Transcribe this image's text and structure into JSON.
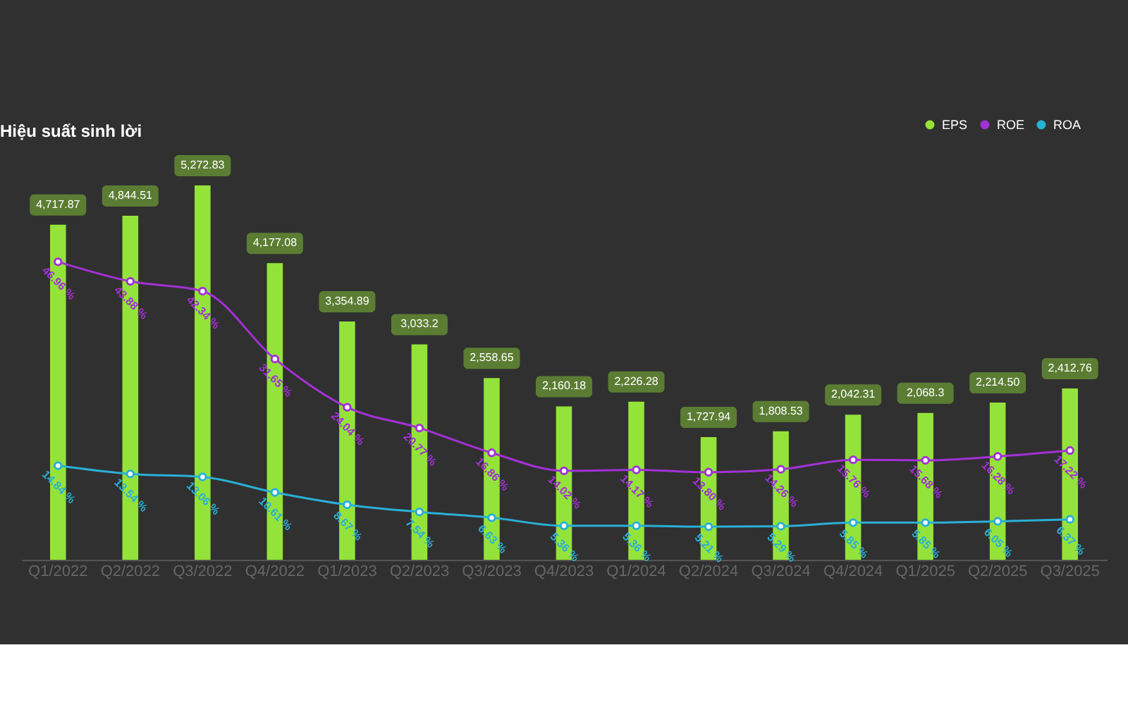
{
  "chart_data": {
    "type": "bar",
    "title": "Hiệu suất sinh lời",
    "categories": [
      "Q1/2022",
      "Q2/2022",
      "Q3/2022",
      "Q4/2022",
      "Q1/2023",
      "Q2/2023",
      "Q3/2023",
      "Q4/2023",
      "Q1/2024",
      "Q2/2024",
      "Q3/2024",
      "Q4/2024",
      "Q1/2025",
      "Q2/2025",
      "Q3/2025"
    ],
    "series": [
      {
        "name": "EPS",
        "color": "#94e33a",
        "values": [
          4717.87,
          4844.51,
          5272.83,
          4177.08,
          3354.89,
          3033.2,
          2558.65,
          2160.18,
          2226.28,
          1727.94,
          1808.53,
          2042.31,
          2068.3,
          2214.5,
          2412.76
        ],
        "value_labels": [
          "4,717.87",
          "4,844.51",
          "5,272.83",
          "4,177.08",
          "3,354.89",
          "3,033.2",
          "2,558.65",
          "2,160.18",
          "2,226.28",
          "1,727.94",
          "1,808.53",
          "2,042.31",
          "2,068.3",
          "2,214.50",
          "2,412.76"
        ]
      },
      {
        "name": "ROE",
        "type": "line",
        "axis": "y2",
        "color": "#a331d6",
        "values": [
          46.96,
          43.88,
          42.34,
          31.65,
          24.04,
          20.77,
          16.86,
          14.02,
          14.17,
          13.8,
          14.26,
          15.76,
          15.68,
          16.28,
          17.22
        ],
        "value_labels": [
          "46.96 %",
          "43.88 %",
          "42.34 %",
          "31.65 %",
          "24.04 %",
          "20.77 %",
          "16.86 %",
          "14.02 %",
          "14.17 %",
          "13.80 %",
          "14.26 %",
          "15.76 %",
          "15.68 %",
          "16.28 %",
          "17.22 %"
        ]
      },
      {
        "name": "ROA",
        "type": "line",
        "axis": "y2",
        "color": "#2ab0d6",
        "values": [
          14.84,
          13.54,
          13.06,
          10.61,
          8.67,
          7.54,
          6.63,
          5.36,
          5.36,
          5.21,
          5.29,
          5.85,
          5.85,
          6.05,
          6.37
        ],
        "value_labels": [
          "14.84 %",
          "13.54 %",
          "13.06 %",
          "10.61 %",
          "8.67 %",
          "7.54 %",
          "6.63 %",
          "5.36 %",
          "5.36 %",
          "5.21 %",
          "5.29 %",
          "5.85 %",
          "5.85 %",
          "6.05 %",
          "6.37 %"
        ]
      }
    ],
    "tick_labels": "x",
    "legend": "top right",
    "marker": "circle",
    "grid": false
  }
}
